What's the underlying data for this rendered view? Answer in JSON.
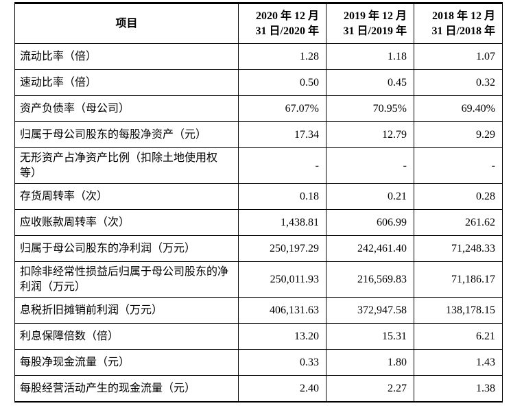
{
  "header": {
    "item": "项目",
    "cols": [
      {
        "line1": "2020 年 12 月",
        "line2": "31 日/2020 年"
      },
      {
        "line1": "2019 年 12 月",
        "line2": "31 日/2019 年"
      },
      {
        "line1": "2018 年 12 月",
        "line2": "31 日/2018 年"
      }
    ]
  },
  "rows": [
    {
      "label": "流动比率（倍）",
      "values": [
        "1.28",
        "1.18",
        "1.07"
      ]
    },
    {
      "label": "速动比率（倍）",
      "values": [
        "0.50",
        "0.45",
        "0.32"
      ]
    },
    {
      "label": "资产负债率（母公司）",
      "values": [
        "67.07%",
        "70.95%",
        "69.40%"
      ]
    },
    {
      "label": "归属于母公司股东的每股净资产（元）",
      "values": [
        "17.34",
        "12.79",
        "9.29"
      ]
    },
    {
      "label": "无形资产占净资产比例（扣除土地使用权等）",
      "values": [
        "-",
        "-",
        "-"
      ]
    },
    {
      "label": "存货周转率（次）",
      "values": [
        "0.18",
        "0.21",
        "0.28"
      ]
    },
    {
      "label": "应收账款周转率（次）",
      "values": [
        "1,438.81",
        "606.99",
        "261.62"
      ]
    },
    {
      "label": "归属于母公司股东的净利润（万元）",
      "values": [
        "250,197.29",
        "242,461.40",
        "71,248.33"
      ]
    },
    {
      "label": "扣除非经常性损益后归属于母公司股东的净利润（万元）",
      "values": [
        "250,011.93",
        "216,569.83",
        "71,186.17"
      ]
    },
    {
      "label": "息税折旧摊销前利润（万元）",
      "values": [
        "406,131.63",
        "372,947.58",
        "138,178.15"
      ]
    },
    {
      "label": "利息保障倍数（倍）",
      "values": [
        "13.20",
        "15.31",
        "6.21"
      ]
    },
    {
      "label": "每股净现金流量（元）",
      "values": [
        "0.33",
        "1.80",
        "1.43"
      ]
    },
    {
      "label": "每股经营活动产生的现金流量（元）",
      "values": [
        "2.40",
        "2.27",
        "1.38"
      ]
    }
  ]
}
